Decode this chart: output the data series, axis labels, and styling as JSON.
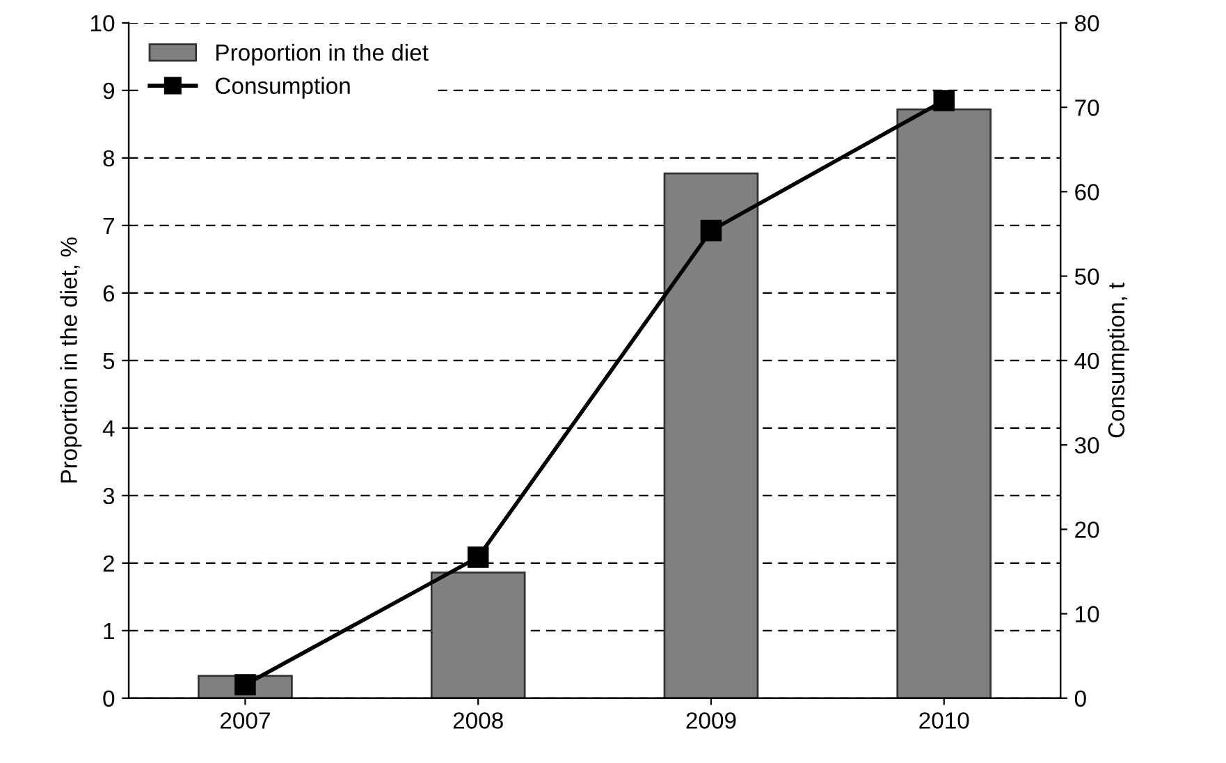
{
  "chart_data": {
    "type": "bar",
    "categories": [
      "2007",
      "2008",
      "2009",
      "2010"
    ],
    "series": [
      {
        "name": "Proportion in the diet",
        "color": "#808080",
        "values": [
          0.33,
          1.86,
          7.77,
          8.72
        ]
      },
      {
        "name": "Consumption",
        "type": "line",
        "axis": "y2",
        "color": "#000000",
        "values": [
          1.6,
          16.7,
          55.4,
          70.8
        ]
      }
    ],
    "ylabel": "Proportion in the diet, %",
    "y2label": "Consumption, t",
    "ylim": [
      0,
      10
    ],
    "yticks": [
      0,
      1,
      2,
      3,
      4,
      5,
      6,
      7,
      8,
      9,
      10
    ],
    "y2lim": [
      0,
      80
    ],
    "y2ticks": [
      0,
      10,
      20,
      30,
      40,
      50,
      60,
      70,
      80
    ],
    "grid": "y",
    "legend": "top left",
    "marker": "square",
    "line_style": "solid"
  }
}
